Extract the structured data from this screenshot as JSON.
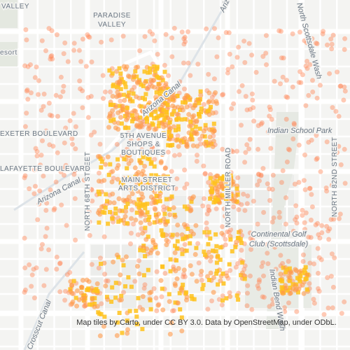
{
  "map": {
    "labels": {
      "valley_top": "VALLEY",
      "paradise_valley": [
        "PARADISE",
        "VALLEY"
      ],
      "resort": "esort",
      "arizona_canal_top": "Arizona Canal",
      "wash_top": "North Scottsdale Wash",
      "arizona_canal_mid": "Arizona Canal",
      "north_68th": "NORTH 68TH STREET",
      "north_miller": "NORTH MILLER ROAD",
      "exeter": "EXETER BOULEVARD",
      "fifth_avenue": [
        "5TH AVENUE",
        "SHOPS &",
        "BOUTIQUES"
      ],
      "indian_school_park": "Indian School Park",
      "lafayette": "LAFAYETTE BOULEVARD",
      "arizona_canal_low": "Arizona Canal",
      "main_street": [
        "MAIN STREET",
        "ARTS DISTRICT"
      ],
      "north_82nd": "NORTH 82ND STREET",
      "continental_golf": [
        "Continental Golf",
        "Club (Scottsdale)"
      ],
      "indian_bend_wash": "Indian Bend Wash",
      "crosscut_canal": "Crosscut Canal"
    },
    "attribution": "Map tiles by Carto, under CC BY 3.0. Data by OpenStreetMap, under ODbL."
  }
}
